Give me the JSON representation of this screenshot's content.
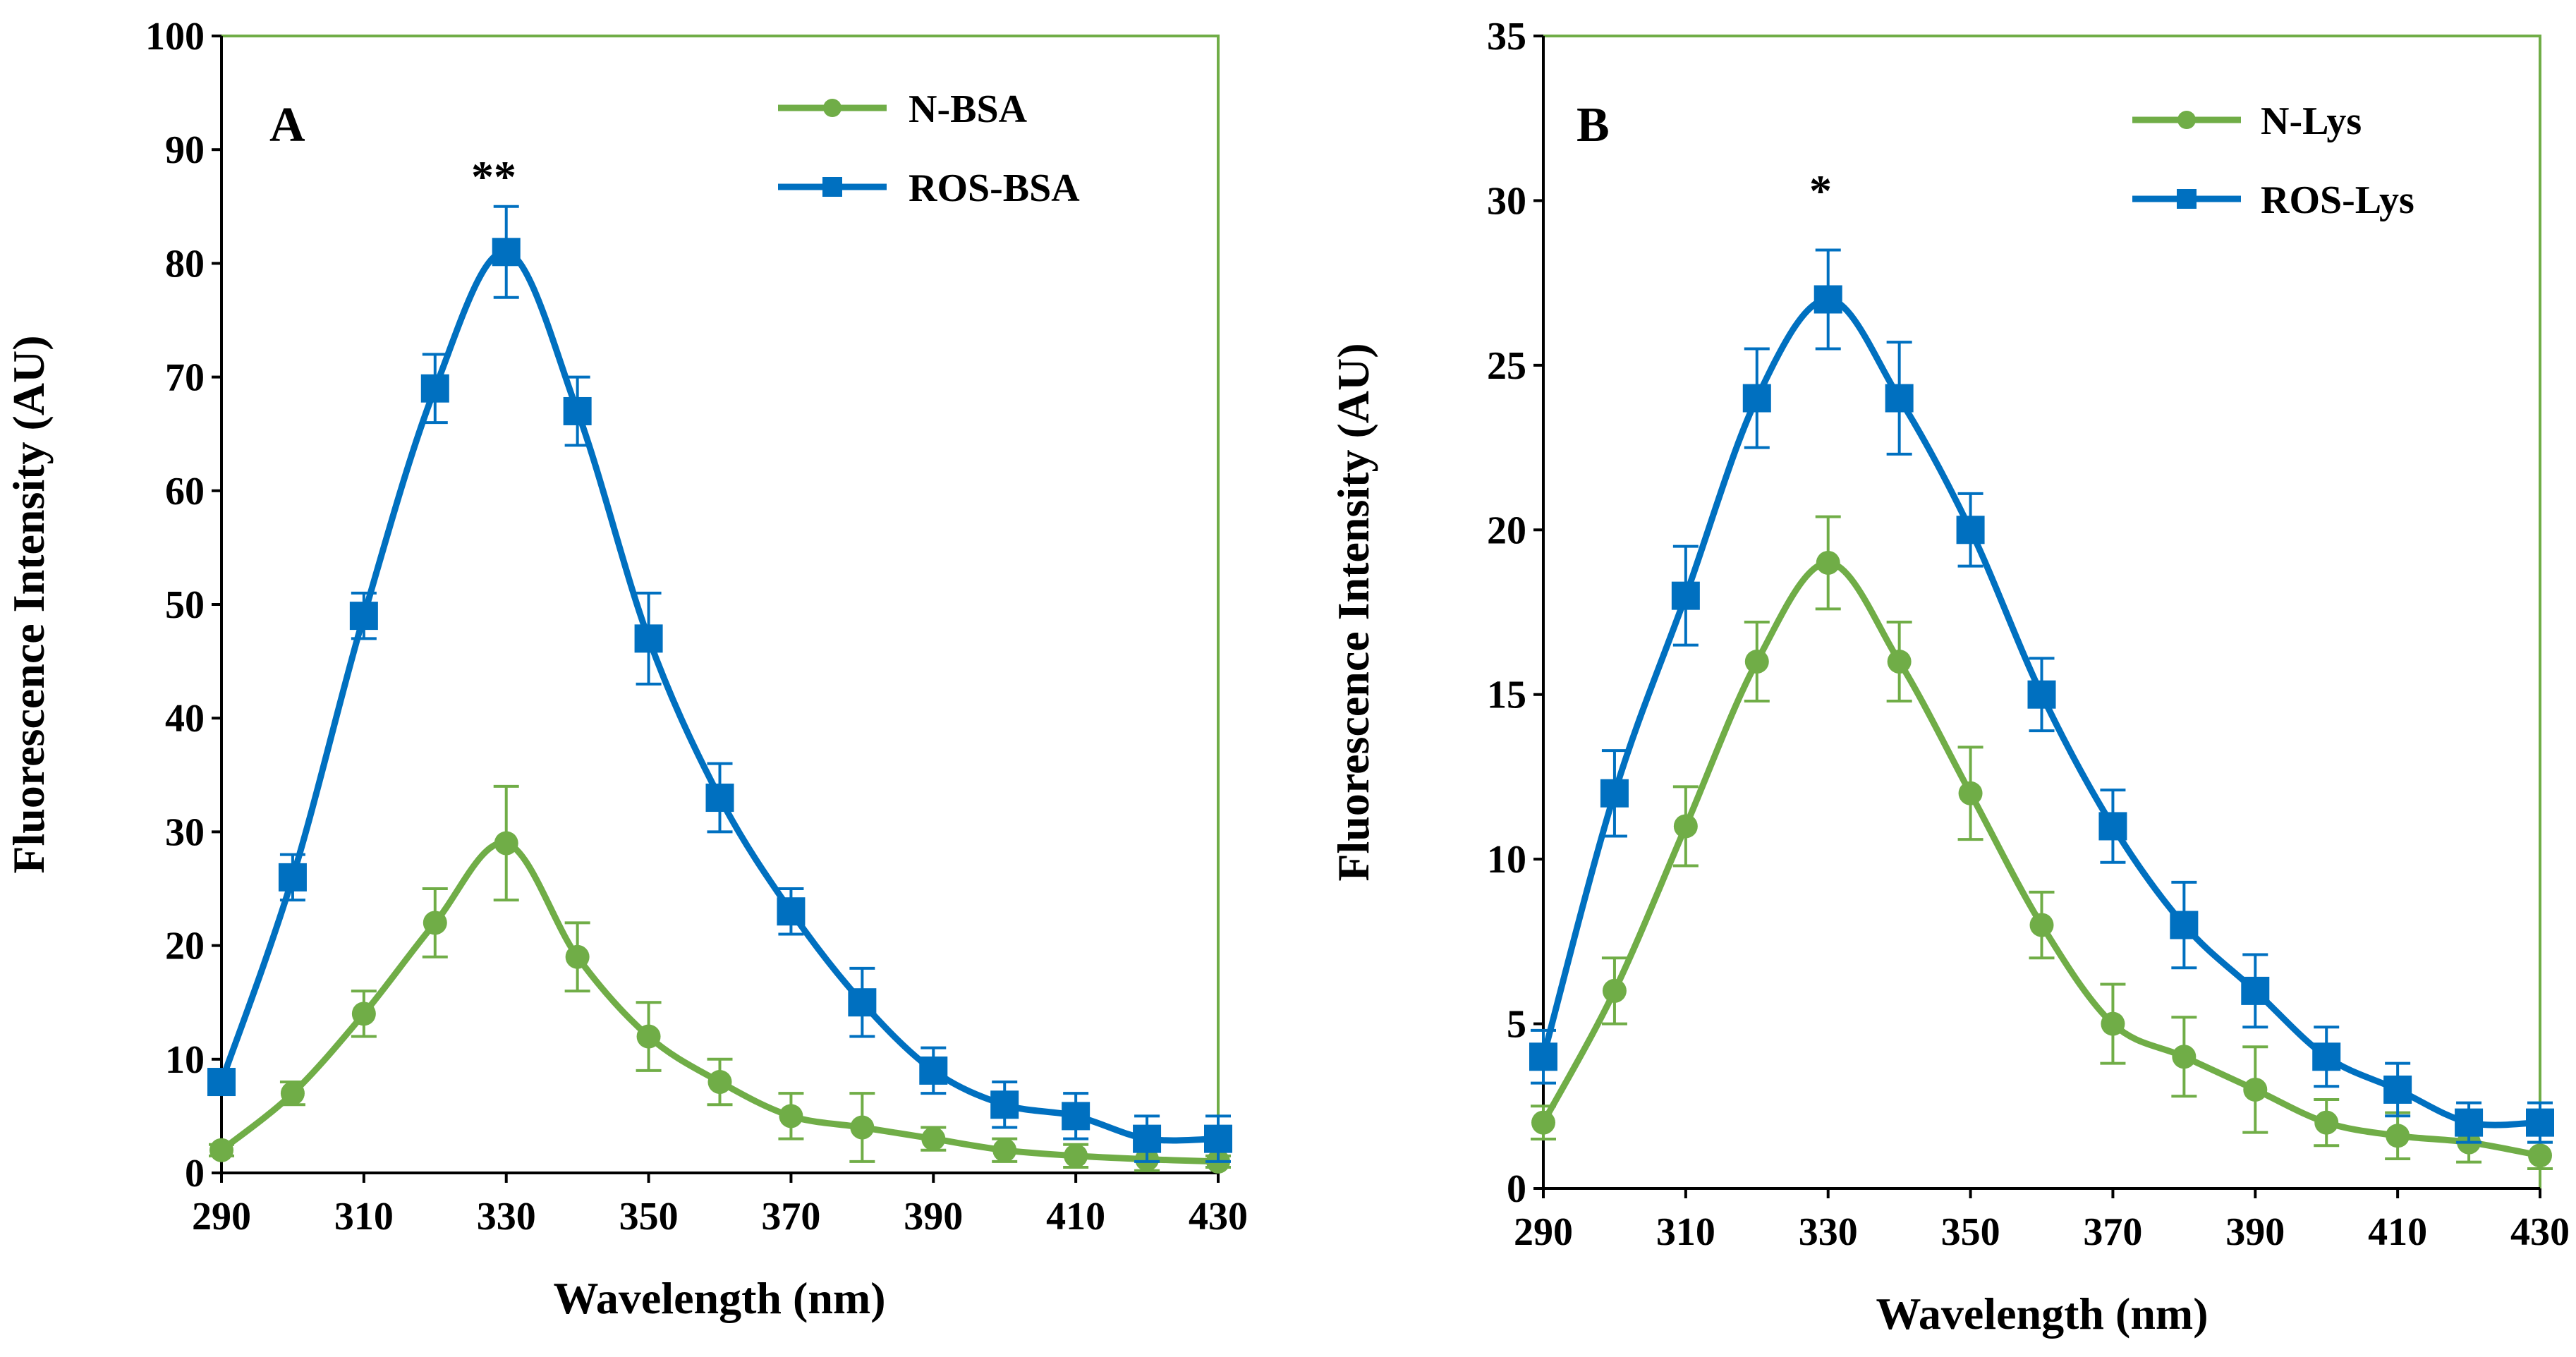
{
  "chart_data": [
    {
      "type": "line",
      "panel_label": "A",
      "xlabel": "Wavelength  (nm)",
      "ylabel": "Fluorescence Intensity  (AU)",
      "xlim": [
        290,
        430
      ],
      "ylim": [
        0,
        100
      ],
      "x_ticks": [
        290,
        310,
        330,
        350,
        370,
        390,
        410,
        430
      ],
      "y_ticks": [
        0,
        10,
        20,
        30,
        40,
        50,
        60,
        70,
        80,
        90,
        100
      ],
      "x": [
        290,
        300,
        310,
        320,
        330,
        340,
        350,
        360,
        370,
        380,
        390,
        400,
        410,
        420,
        430
      ],
      "series": [
        {
          "name": "N-BSA",
          "color": "#70AD47",
          "marker": "circle",
          "values": [
            2,
            7,
            14,
            22,
            29,
            19,
            12,
            8,
            5,
            4,
            3,
            2,
            1.5,
            1.2,
            1
          ],
          "errors": [
            0.5,
            1,
            2,
            3,
            5,
            3,
            3,
            2,
            2,
            3,
            1,
            1,
            1,
            1,
            0.5
          ]
        },
        {
          "name": "ROS-BSA",
          "color": "#0070C0",
          "marker": "square",
          "values": [
            8,
            26,
            49,
            69,
            81,
            67,
            47,
            33,
            23,
            15,
            9,
            6,
            5,
            3,
            3
          ],
          "errors": [
            1,
            2,
            2,
            3,
            4,
            3,
            4,
            3,
            2,
            3,
            2,
            2,
            2,
            2,
            2
          ]
        }
      ],
      "annotations": [
        {
          "text": "**",
          "x": 330
        }
      ],
      "legend_position": "top-right"
    },
    {
      "type": "line",
      "panel_label": "B",
      "xlabel": "Wavelength  (nm)",
      "ylabel": "Fluorescence Intensity  (AU)",
      "xlim": [
        290,
        430
      ],
      "ylim": [
        0,
        35
      ],
      "x_ticks": [
        290,
        310,
        330,
        350,
        370,
        390,
        410,
        430
      ],
      "y_ticks": [
        0,
        5,
        10,
        15,
        20,
        25,
        30,
        35
      ],
      "x": [
        290,
        300,
        310,
        320,
        330,
        340,
        350,
        360,
        370,
        380,
        390,
        400,
        410,
        420,
        430
      ],
      "series": [
        {
          "name": "N-Lys",
          "color": "#70AD47",
          "marker": "circle",
          "values": [
            2,
            6,
            11,
            16,
            19,
            16,
            12,
            8,
            5,
            4,
            3,
            2,
            1.6,
            1.4,
            1
          ],
          "errors": [
            0.5,
            1,
            1.2,
            1.2,
            1.4,
            1.2,
            1.4,
            1,
            1.2,
            1.2,
            1.3,
            0.7,
            0.7,
            0.6,
            0.4
          ]
        },
        {
          "name": "ROS-Lys",
          "color": "#0070C0",
          "marker": "square",
          "values": [
            4,
            12,
            18,
            24,
            27,
            24,
            20,
            15,
            11,
            8,
            6,
            4,
            3,
            2,
            2
          ],
          "errors": [
            0.8,
            1.3,
            1.5,
            1.5,
            1.5,
            1.7,
            1.1,
            1.1,
            1.1,
            1.3,
            1.1,
            0.9,
            0.8,
            0.6,
            0.6
          ]
        }
      ],
      "annotations": [
        {
          "text": "*",
          "x": 330
        }
      ],
      "legend_position": "top-right"
    }
  ]
}
